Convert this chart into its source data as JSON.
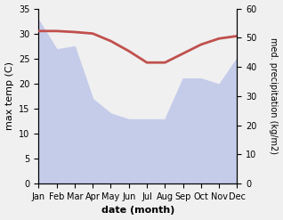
{
  "months": [
    "Jan",
    "Feb",
    "Mar",
    "Apr",
    "May",
    "Jun",
    "Jul",
    "Aug",
    "Sep",
    "Oct",
    "Nov",
    "Dec"
  ],
  "temperature": [
    30.5,
    30.5,
    30.3,
    30.0,
    28.5,
    26.5,
    24.2,
    24.2,
    26.0,
    27.8,
    29.0,
    29.5
  ],
  "precipitation": [
    56,
    46,
    47,
    29,
    24,
    22,
    22,
    22,
    36,
    36,
    34,
    43
  ],
  "temp_ylim": [
    0,
    35
  ],
  "precip_ylim": [
    0,
    60
  ],
  "temp_color": "#c0504d",
  "precip_color": "#c5ccea",
  "xlabel": "date (month)",
  "ylabel_left": "max temp (C)",
  "ylabel_right": "med. precipitation (kg/m2)",
  "temp_yticks": [
    0,
    5,
    10,
    15,
    20,
    25,
    30,
    35
  ],
  "precip_yticks": [
    0,
    10,
    20,
    30,
    40,
    50,
    60
  ],
  "figsize": [
    3.18,
    2.47
  ],
  "dpi": 100,
  "bg_color": "#f0f0f0"
}
